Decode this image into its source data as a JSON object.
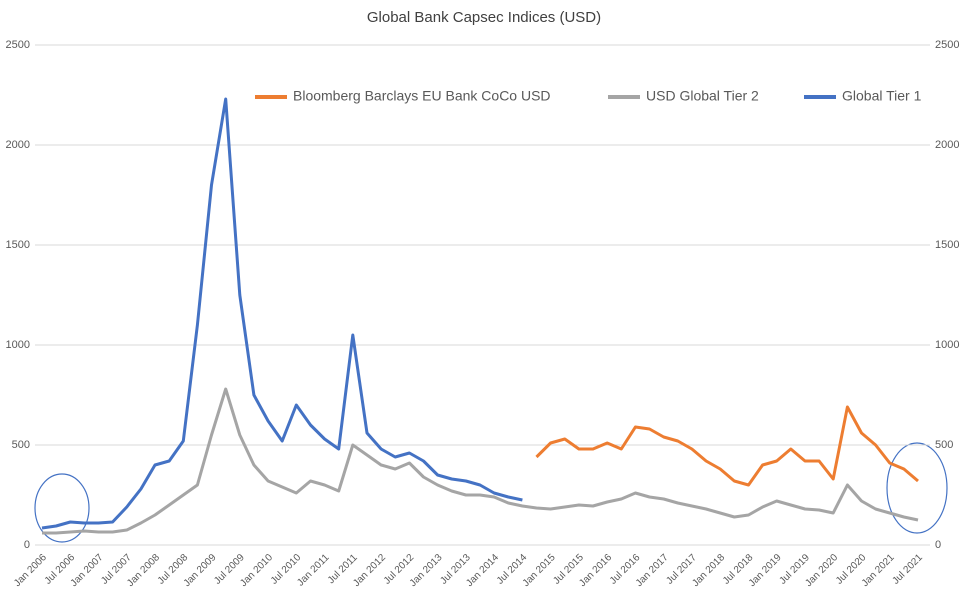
{
  "chart_data": {
    "type": "line",
    "title": "Global Bank Capsec Indices (USD)",
    "categories": [
      "Jan 2006",
      null,
      "Jul 2006",
      null,
      "Jan 2007",
      null,
      "Jul 2007",
      null,
      "Jan 2008",
      null,
      "Jul 2008",
      null,
      "Jan 2009",
      null,
      "Jul 2009",
      null,
      "Jan 2010",
      null,
      "Jul 2010",
      null,
      "Jan 2011",
      null,
      "Jul 2011",
      null,
      "Jan 2012",
      null,
      "Jul 2012",
      null,
      "Jan 2013",
      null,
      "Jul 2013",
      null,
      "Jan 2014",
      null,
      "Jul 2014",
      null,
      "Jan 2015",
      null,
      "Jul 2015",
      null,
      "Jan 2016",
      null,
      "Jul 2016",
      null,
      "Jan 2017",
      null,
      "Jul 2017",
      null,
      "Jan 2018",
      null,
      "Jul 2018",
      null,
      "Jan 2019",
      null,
      "Jul 2019",
      null,
      "Jan 2020",
      null,
      "Jul 2020",
      null,
      "Jan 2021",
      null,
      "Jul 2021"
    ],
    "series": [
      {
        "name": "Bloomberg Barclays EU Bank CoCo USD",
        "color": "#ed7d31",
        "axis": "y2",
        "values": [
          null,
          null,
          null,
          null,
          null,
          null,
          null,
          null,
          null,
          null,
          null,
          null,
          null,
          null,
          null,
          null,
          null,
          null,
          null,
          null,
          null,
          null,
          null,
          null,
          null,
          null,
          null,
          null,
          null,
          null,
          null,
          null,
          null,
          null,
          null,
          440,
          510,
          530,
          480,
          480,
          510,
          480,
          590,
          580,
          540,
          520,
          480,
          420,
          380,
          320,
          300,
          400,
          420,
          480,
          420,
          420,
          330,
          690,
          560,
          500,
          410,
          380,
          320
        ]
      },
      {
        "name": "USD Global Tier 2",
        "color": "#a5a5a5",
        "values": [
          60,
          60,
          65,
          70,
          65,
          65,
          75,
          110,
          150,
          200,
          250,
          300,
          550,
          780,
          550,
          400,
          320,
          290,
          260,
          320,
          300,
          270,
          500,
          450,
          400,
          380,
          410,
          340,
          300,
          270,
          250,
          250,
          240,
          210,
          195,
          185,
          180,
          190,
          200,
          195,
          215,
          230,
          260,
          240,
          230,
          210,
          195,
          180,
          160,
          140,
          150,
          190,
          220,
          200,
          180,
          175,
          160,
          300,
          220,
          180,
          160,
          140,
          125
        ]
      },
      {
        "name": "Global Tier 1",
        "color": "#4472c4",
        "values": [
          85,
          95,
          115,
          110,
          110,
          115,
          190,
          280,
          400,
          420,
          520,
          1100,
          1800,
          2230,
          1250,
          750,
          620,
          520,
          700,
          600,
          530,
          480,
          1050,
          560,
          480,
          440,
          460,
          420,
          350,
          330,
          320,
          300,
          260,
          240,
          225,
          null,
          null,
          null,
          null,
          null,
          null,
          null,
          null,
          null,
          null,
          null,
          null,
          null,
          null,
          null,
          null,
          null,
          null,
          null,
          null,
          null,
          null,
          null,
          null,
          null,
          null,
          null,
          null
        ]
      }
    ],
    "ylim": [
      0,
      2500
    ],
    "yticks": [
      0,
      500,
      1000,
      1500,
      2000,
      2500
    ],
    "y2lim": [
      0,
      2500
    ],
    "y2ticks": [
      0,
      500,
      1000,
      1500,
      2000,
      2500
    ],
    "grid": true
  }
}
